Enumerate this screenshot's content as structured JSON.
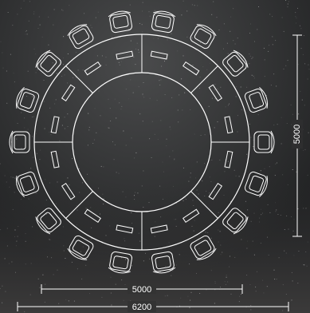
{
  "drawing": {
    "type": "round table seating plan",
    "chair_count": 18,
    "stroke_color": "#ffffff",
    "background_color": "#2a2b2c"
  },
  "dimensions": {
    "inner_width": "5000",
    "outer_width": "6200",
    "height": "5000"
  }
}
